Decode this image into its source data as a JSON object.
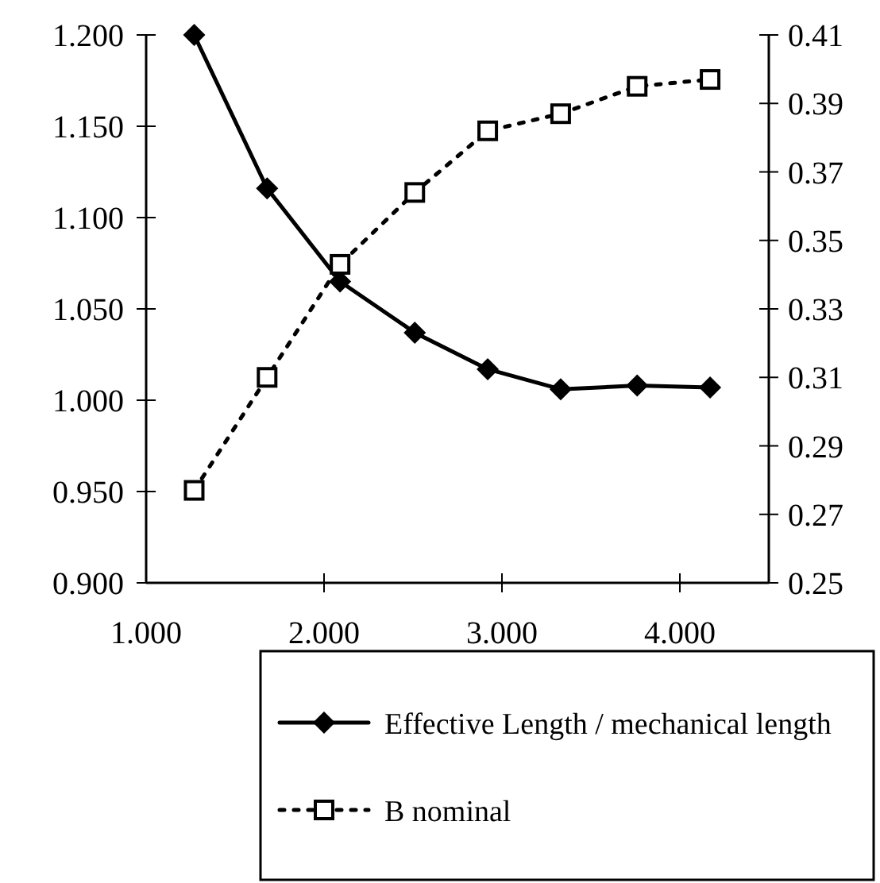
{
  "chart_data": {
    "type": "line",
    "x": [
      1.27,
      1.68,
      2.09,
      2.51,
      2.92,
      3.33,
      3.76,
      4.17
    ],
    "series": [
      {
        "name": "Effective Length / mechanical length",
        "color": "#000000",
        "marker": "diamond",
        "line_style": "solid",
        "values": [
          1.2,
          1.116,
          1.065,
          1.037,
          1.017,
          1.006,
          1.008,
          1.007
        ]
      },
      {
        "name": "B nominal",
        "color": "#000000",
        "marker": "square",
        "line_style": "dotted",
        "axis": "y2",
        "values": [
          0.277,
          0.31,
          0.343,
          0.364,
          0.382,
          0.387,
          0.395,
          0.397
        ]
      }
    ],
    "xlim": [
      1,
      4.5
    ],
    "xticks": [
      {
        "value": 1,
        "label": "1.000"
      },
      {
        "value": 2,
        "label": "2.000"
      },
      {
        "value": 3,
        "label": "3.000"
      },
      {
        "value": 4,
        "label": "4.000"
      }
    ],
    "ylim": [
      0.9,
      1.2
    ],
    "yticks": [
      {
        "value": 0.9,
        "label": "0.900"
      },
      {
        "value": 0.95,
        "label": "0.950"
      },
      {
        "value": 1,
        "label": "1.000"
      },
      {
        "value": 1.05,
        "label": "1.050"
      },
      {
        "value": 1.1,
        "label": "1.100"
      },
      {
        "value": 1.15,
        "label": "1.150"
      },
      {
        "value": 1.2,
        "label": "1.200"
      }
    ],
    "y2lim": [
      0.25,
      0.41
    ],
    "y2ticks": [
      0.25,
      0.27,
      0.29,
      0.31,
      0.33,
      0.35,
      0.37,
      0.39,
      0.41
    ],
    "grid": false,
    "legend": "bottom"
  }
}
